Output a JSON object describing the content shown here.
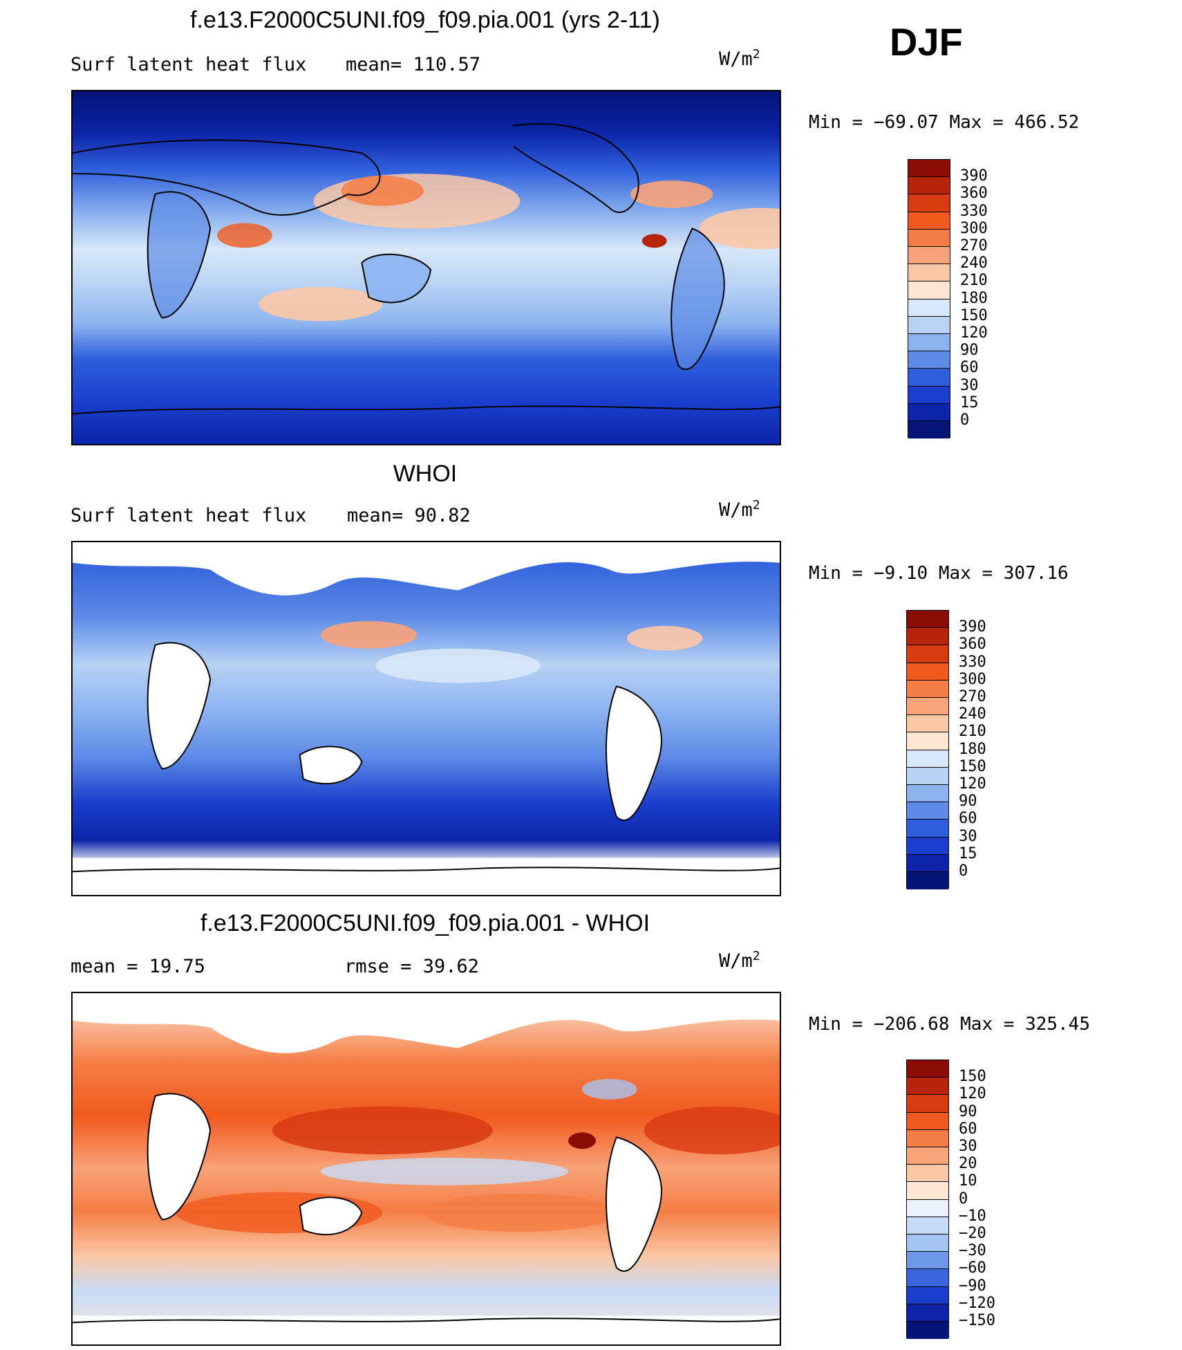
{
  "season": "DJF",
  "units_base": "W/m",
  "units_exp": "2",
  "panels": [
    {
      "title": "f.e13.F2000C5UNI.f09_f09.pia.001 (yrs 2-11)",
      "left_label": "Surf  latent  heat  flux",
      "mid_label": "mean=  110.57",
      "minmax": "Min  =  −69.07  Max  =  466.52",
      "colorbar": {
        "labels": [
          "390",
          "360",
          "330",
          "300",
          "270",
          "240",
          "210",
          "180",
          "150",
          "120",
          "90",
          "60",
          "30",
          "15",
          "0"
        ],
        "colors": [
          "#8a0c05",
          "#b8240b",
          "#d83a12",
          "#f05a1f",
          "#f47d45",
          "#f8a37a",
          "#fbc8a7",
          "#fde6d3",
          "#d9e8f8",
          "#b8d2f4",
          "#8db3ef",
          "#5e8be6",
          "#2f5fdc",
          "#1a3fcc",
          "#0d24a8",
          "#061377"
        ]
      },
      "map_kind": "model"
    },
    {
      "title": "WHOI",
      "left_label": "Surf  latent  heat  flux",
      "mid_label": "mean=   90.82",
      "minmax": "Min  =   −9.10  Max  =  307.16",
      "colorbar": {
        "labels": [
          "390",
          "360",
          "330",
          "300",
          "270",
          "240",
          "210",
          "180",
          "150",
          "120",
          "90",
          "60",
          "30",
          "15",
          "0"
        ],
        "colors": [
          "#8a0c05",
          "#b8240b",
          "#d83a12",
          "#f05a1f",
          "#f47d45",
          "#f8a37a",
          "#fbc8a7",
          "#fde6d3",
          "#d9e8f8",
          "#b8d2f4",
          "#8db3ef",
          "#5e8be6",
          "#2f5fdc",
          "#1a3fcc",
          "#0d24a8",
          "#061377"
        ]
      },
      "map_kind": "obs"
    },
    {
      "title": "f.e13.F2000C5UNI.f09_f09.pia.001 - WHOI",
      "left_label": "mean  =    19.75",
      "mid_label": "rmse  =    39.62",
      "minmax": "Min  =  −206.68  Max  =  325.45",
      "colorbar": {
        "labels": [
          "150",
          "120",
          "90",
          "60",
          "30",
          "20",
          "10",
          "0",
          "−10",
          "−20",
          "−30",
          "−60",
          "−90",
          "−120",
          "−150"
        ],
        "colors": [
          "#8a0c05",
          "#b8240b",
          "#d83a12",
          "#f05a1f",
          "#f47d45",
          "#f8a37a",
          "#fbc8a7",
          "#fde6d3",
          "#eaf1fb",
          "#c8dcf7",
          "#a6c4f1",
          "#6f97e8",
          "#3a66dd",
          "#1a3fcc",
          "#0d24a8",
          "#061377"
        ]
      },
      "map_kind": "diff"
    }
  ],
  "chart_data": {
    "type": "heatmap",
    "subplots": [
      {
        "title": "f.e13.F2000C5UNI.f09_f09.pia.001 (yrs 2-11)",
        "variable": "Surf latent heat flux",
        "mean": 110.57,
        "min": -69.07,
        "max": 466.52,
        "units": "W/m2",
        "levels": [
          0,
          15,
          30,
          60,
          90,
          120,
          150,
          180,
          210,
          240,
          270,
          300,
          330,
          360,
          390
        ]
      },
      {
        "title": "WHOI",
        "variable": "Surf latent heat flux",
        "mean": 90.82,
        "min": -9.1,
        "max": 307.16,
        "units": "W/m2",
        "levels": [
          0,
          15,
          30,
          60,
          90,
          120,
          150,
          180,
          210,
          240,
          270,
          300,
          330,
          360,
          390
        ]
      },
      {
        "title": "f.e13.F2000C5UNI.f09_f09.pia.001 - WHOI",
        "mean": 19.75,
        "rmse": 39.62,
        "min": -206.68,
        "max": 325.45,
        "units": "W/m2",
        "levels": [
          -150,
          -120,
          -90,
          -60,
          -30,
          -20,
          -10,
          0,
          10,
          20,
          30,
          60,
          90,
          120,
          150
        ]
      }
    ]
  }
}
